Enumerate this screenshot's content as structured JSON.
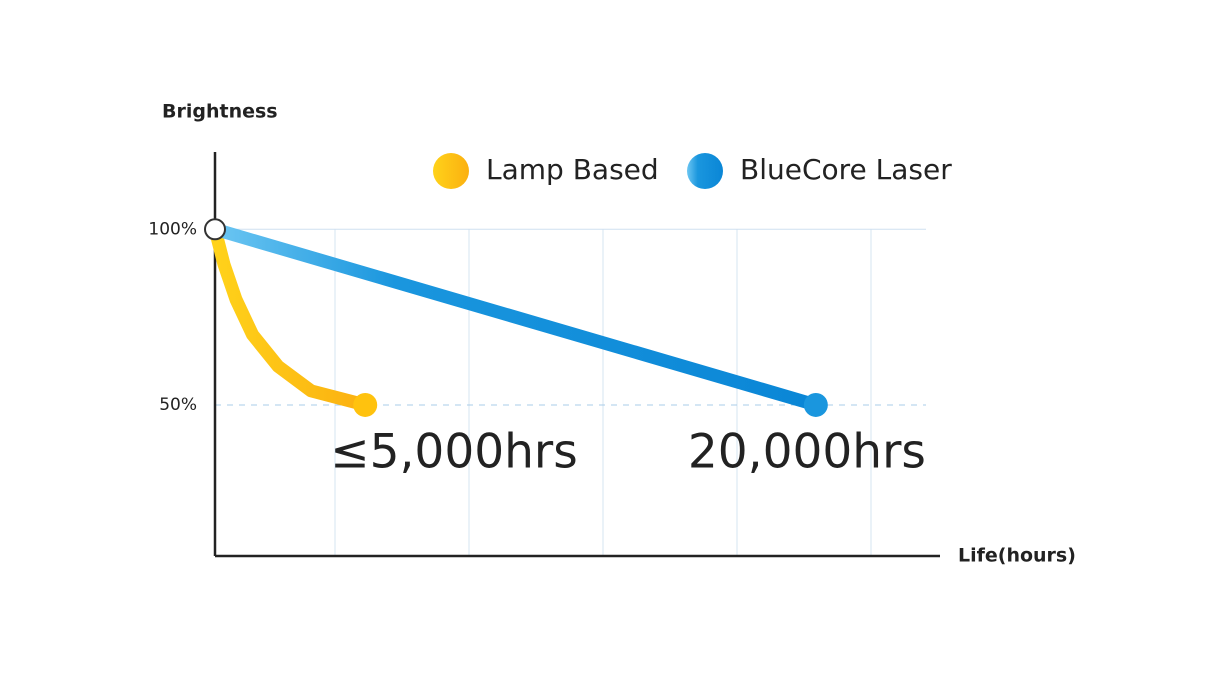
{
  "chart_data": {
    "type": "line",
    "y_label": "Brightness",
    "x_label": "Life(hours)",
    "xlim": [
      0,
      24000
    ],
    "ylim": [
      7,
      122
    ],
    "yticks": [
      {
        "value": 100,
        "label": "100%"
      },
      {
        "value": 50,
        "label": "50%"
      }
    ],
    "grid": true,
    "legend": "top",
    "series": [
      {
        "name": "Lamp Based",
        "color": "#ffc20e",
        "x": [
          0,
          300,
          700,
          1250,
          2100,
          3200,
          5000
        ],
        "values": [
          100,
          90,
          80,
          70,
          61,
          54,
          50
        ],
        "annotation": "≤5,000hrs"
      },
      {
        "name": "BlueCore Laser",
        "color": "#1a96de",
        "x": [
          0,
          20000
        ],
        "values": [
          100,
          50
        ],
        "annotation": "20,000hrs"
      }
    ]
  }
}
